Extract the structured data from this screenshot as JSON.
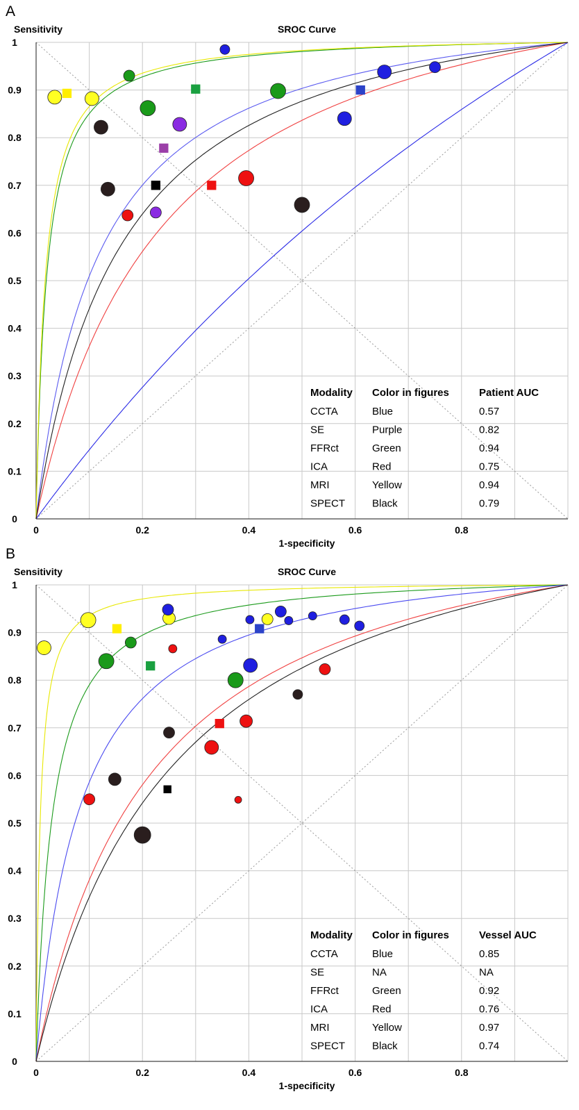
{
  "chart_data": [
    {
      "panel_label": "A",
      "type": "scatter",
      "title": "SROC Curve",
      "ylabel": "Sensitivity",
      "xlabel": "1-specificity",
      "xlim": [
        0,
        1
      ],
      "ylim": [
        0,
        1
      ],
      "x_ticks": [
        "0",
        "0.2",
        "0.4",
        "0.6",
        "0.8"
      ],
      "y_ticks": [
        "0",
        "0.1",
        "0.2",
        "0.3",
        "0.4",
        "0.5",
        "0.6",
        "0.7",
        "0.8",
        "0.9",
        "1"
      ],
      "grid": true,
      "table": {
        "headers": [
          "Modality",
          "Color in figures",
          "Patient AUC"
        ],
        "rows": [
          [
            "CCTA",
            "Blue",
            "0.57"
          ],
          [
            "SE",
            "Purple",
            "0.82"
          ],
          [
            "FFRct",
            "Green",
            "0.94"
          ],
          [
            "ICA",
            "Red",
            "0.75"
          ],
          [
            "MRI",
            "Yellow",
            "0.94"
          ],
          [
            "SPECT",
            "Black",
            "0.79"
          ]
        ]
      },
      "curves": [
        {
          "modality": "CCTA",
          "color": "#2a2ae6",
          "auc": 0.57
        },
        {
          "modality": "SE",
          "color": "#5a5af0",
          "auc": 0.82
        },
        {
          "modality": "FFRct",
          "color": "#1a9a1a",
          "auc": 0.94
        },
        {
          "modality": "ICA",
          "color": "#f04040",
          "auc": 0.75
        },
        {
          "modality": "MRI",
          "color": "#e8e800",
          "auc": 0.945
        },
        {
          "modality": "SPECT",
          "color": "#202020",
          "auc": 0.79
        }
      ],
      "points": [
        {
          "modality": "CCTA",
          "shape": "circle",
          "size": 7,
          "x": 0.355,
          "y": 0.985
        },
        {
          "modality": "CCTA",
          "shape": "circle",
          "size": 10,
          "x": 0.655,
          "y": 0.938
        },
        {
          "modality": "CCTA",
          "shape": "circle",
          "size": 8,
          "x": 0.75,
          "y": 0.948
        },
        {
          "modality": "CCTA",
          "shape": "circle",
          "size": 10,
          "x": 0.58,
          "y": 0.84
        },
        {
          "modality": "CCTA",
          "shape": "square",
          "size": 7,
          "x": 0.61,
          "y": 0.9
        },
        {
          "modality": "SE",
          "shape": "circle",
          "size": 10,
          "x": 0.27,
          "y": 0.828
        },
        {
          "modality": "SE",
          "shape": "circle",
          "size": 8,
          "x": 0.225,
          "y": 0.643
        },
        {
          "modality": "SE",
          "shape": "square",
          "size": 7,
          "x": 0.24,
          "y": 0.778
        },
        {
          "modality": "FFRct",
          "shape": "circle",
          "size": 8,
          "x": 0.175,
          "y": 0.93
        },
        {
          "modality": "FFRct",
          "shape": "circle",
          "size": 11,
          "x": 0.21,
          "y": 0.862
        },
        {
          "modality": "FFRct",
          "shape": "circle",
          "size": 11,
          "x": 0.455,
          "y": 0.898
        },
        {
          "modality": "FFRct",
          "shape": "square",
          "size": 7,
          "x": 0.3,
          "y": 0.902
        },
        {
          "modality": "ICA",
          "shape": "circle",
          "size": 8,
          "x": 0.172,
          "y": 0.637
        },
        {
          "modality": "ICA",
          "shape": "circle",
          "size": 11,
          "x": 0.395,
          "y": 0.715
        },
        {
          "modality": "ICA",
          "shape": "square",
          "size": 7,
          "x": 0.33,
          "y": 0.7
        },
        {
          "modality": "MRI",
          "shape": "circle",
          "size": 10,
          "x": 0.035,
          "y": 0.885
        },
        {
          "modality": "MRI",
          "shape": "circle",
          "size": 10,
          "x": 0.105,
          "y": 0.882
        },
        {
          "modality": "MRI",
          "shape": "square",
          "size": 7,
          "x": 0.058,
          "y": 0.893
        },
        {
          "modality": "SPECT",
          "shape": "circle",
          "size": 10,
          "x": 0.122,
          "y": 0.822
        },
        {
          "modality": "SPECT",
          "shape": "circle",
          "size": 10,
          "x": 0.135,
          "y": 0.692
        },
        {
          "modality": "SPECT",
          "shape": "circle",
          "size": 11,
          "x": 0.5,
          "y": 0.659
        },
        {
          "modality": "SPECT",
          "shape": "square",
          "size": 7,
          "x": 0.225,
          "y": 0.7
        }
      ]
    },
    {
      "panel_label": "B",
      "type": "scatter",
      "title": "SROC Curve",
      "ylabel": "Sensitivity",
      "xlabel": "1-specificity",
      "xlim": [
        0,
        1
      ],
      "ylim": [
        0,
        1
      ],
      "x_ticks": [
        "0",
        "0.2",
        "0.4",
        "0.6",
        "0.8"
      ],
      "y_ticks": [
        "0",
        "0.1",
        "0.2",
        "0.3",
        "0.4",
        "0.5",
        "0.6",
        "0.7",
        "0.8",
        "0.9",
        "1"
      ],
      "grid": true,
      "table": {
        "headers": [
          "Modality",
          "Color in figures",
          "Vessel AUC"
        ],
        "rows": [
          [
            "CCTA",
            "Blue",
            "0.85"
          ],
          [
            "SE",
            "NA",
            "NA"
          ],
          [
            "FFRct",
            "Green",
            "0.92"
          ],
          [
            "ICA",
            "Red",
            "0.76"
          ],
          [
            "MRI",
            "Yellow",
            "0.97"
          ],
          [
            "SPECT",
            "Black",
            "0.74"
          ]
        ]
      },
      "curves": [
        {
          "modality": "MRI",
          "color": "#e8e800",
          "auc": 0.97
        },
        {
          "modality": "FFRct",
          "color": "#1a9a1a",
          "auc": 0.92
        },
        {
          "modality": "CCTA",
          "color": "#4a4af0",
          "auc": 0.85
        },
        {
          "modality": "ICA",
          "color": "#f04040",
          "auc": 0.76
        },
        {
          "modality": "SPECT",
          "color": "#202020",
          "auc": 0.74
        }
      ],
      "points": [
        {
          "modality": "MRI",
          "shape": "circle",
          "size": 10,
          "x": 0.015,
          "y": 0.868
        },
        {
          "modality": "MRI",
          "shape": "circle",
          "size": 11,
          "x": 0.098,
          "y": 0.926
        },
        {
          "modality": "MRI",
          "shape": "circle",
          "size": 9,
          "x": 0.25,
          "y": 0.93
        },
        {
          "modality": "MRI",
          "shape": "circle",
          "size": 8,
          "x": 0.435,
          "y": 0.928
        },
        {
          "modality": "MRI",
          "shape": "square",
          "size": 7,
          "x": 0.152,
          "y": 0.908
        },
        {
          "modality": "FFRct",
          "shape": "circle",
          "size": 11,
          "x": 0.132,
          "y": 0.84
        },
        {
          "modality": "FFRct",
          "shape": "circle",
          "size": 8,
          "x": 0.178,
          "y": 0.879
        },
        {
          "modality": "FFRct",
          "shape": "circle",
          "size": 11,
          "x": 0.375,
          "y": 0.8
        },
        {
          "modality": "FFRct",
          "shape": "square",
          "size": 7,
          "x": 0.215,
          "y": 0.83
        },
        {
          "modality": "CCTA",
          "shape": "circle",
          "size": 8,
          "x": 0.248,
          "y": 0.948
        },
        {
          "modality": "CCTA",
          "shape": "circle",
          "size": 6,
          "x": 0.35,
          "y": 0.886
        },
        {
          "modality": "CCTA",
          "shape": "circle",
          "size": 6,
          "x": 0.402,
          "y": 0.927
        },
        {
          "modality": "CCTA",
          "shape": "circle",
          "size": 8,
          "x": 0.46,
          "y": 0.944
        },
        {
          "modality": "CCTA",
          "shape": "circle",
          "size": 6,
          "x": 0.475,
          "y": 0.925
        },
        {
          "modality": "CCTA",
          "shape": "circle",
          "size": 6,
          "x": 0.52,
          "y": 0.935
        },
        {
          "modality": "CCTA",
          "shape": "circle",
          "size": 7,
          "x": 0.58,
          "y": 0.927
        },
        {
          "modality": "CCTA",
          "shape": "circle",
          "size": 7,
          "x": 0.608,
          "y": 0.914
        },
        {
          "modality": "CCTA",
          "shape": "circle",
          "size": 10,
          "x": 0.403,
          "y": 0.831
        },
        {
          "modality": "CCTA",
          "shape": "square",
          "size": 7,
          "x": 0.42,
          "y": 0.908
        },
        {
          "modality": "ICA",
          "shape": "circle",
          "size": 6,
          "x": 0.257,
          "y": 0.866
        },
        {
          "modality": "ICA",
          "shape": "circle",
          "size": 8,
          "x": 0.1,
          "y": 0.55
        },
        {
          "modality": "ICA",
          "shape": "circle",
          "size": 10,
          "x": 0.33,
          "y": 0.659
        },
        {
          "modality": "ICA",
          "shape": "circle",
          "size": 9,
          "x": 0.395,
          "y": 0.714
        },
        {
          "modality": "ICA",
          "shape": "circle",
          "size": 5,
          "x": 0.38,
          "y": 0.549
        },
        {
          "modality": "ICA",
          "shape": "circle",
          "size": 8,
          "x": 0.543,
          "y": 0.823
        },
        {
          "modality": "ICA",
          "shape": "square",
          "size": 7,
          "x": 0.345,
          "y": 0.709
        },
        {
          "modality": "SPECT",
          "shape": "circle",
          "size": 9,
          "x": 0.148,
          "y": 0.592
        },
        {
          "modality": "SPECT",
          "shape": "circle",
          "size": 12,
          "x": 0.2,
          "y": 0.475
        },
        {
          "modality": "SPECT",
          "shape": "circle",
          "size": 8,
          "x": 0.25,
          "y": 0.69
        },
        {
          "modality": "SPECT",
          "shape": "circle",
          "size": 7,
          "x": 0.492,
          "y": 0.77
        },
        {
          "modality": "SPECT",
          "shape": "square",
          "size": 6,
          "x": 0.247,
          "y": 0.571
        }
      ]
    }
  ],
  "modality_colors": {
    "CCTA": "#1f1fe0",
    "SE": "#8a2be2",
    "SE_square": "#9b3fa8",
    "FFRct": "#1a9a1a",
    "ICA": "#ee1111",
    "MRI": "#ffff22",
    "SPECT": "#2a1e1e",
    "SPECT_square": "#000000",
    "CCTA_square": "#2c43c9",
    "FFRct_square": "#1aa040",
    "MRI_square": "#ffee00",
    "ICA_square": "#ee1111"
  }
}
